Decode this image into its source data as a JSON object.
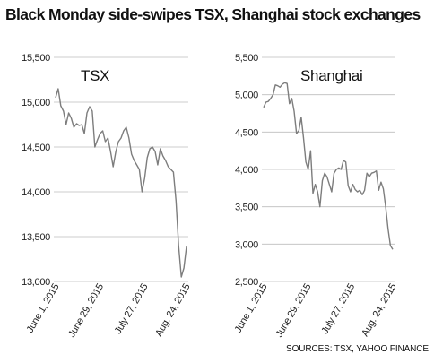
{
  "title": "Black Monday side-swipes TSX, Shanghai stock exchanges",
  "source": "SOURCES: TSX, YAHOO FINANCE",
  "colors": {
    "line": "#7d7d7d",
    "grid": "#bdbdbd",
    "text": "#222222"
  },
  "chart_data": [
    {
      "type": "line",
      "title": "TSX",
      "ylim": [
        13000,
        15500
      ],
      "yticks": [
        13000,
        13500,
        14000,
        14500,
        15000,
        15500
      ],
      "ytick_labels": [
        "13,000",
        "13,500",
        "14,000",
        "14,500",
        "15,000",
        "15,500"
      ],
      "xticks": [
        0,
        20,
        40,
        59
      ],
      "xtick_labels": [
        "June 1, 2015",
        "June 29, 2015",
        "July 27, 2015",
        "Aug. 24, 2015"
      ],
      "grid": true,
      "series": [
        {
          "values": [
            15050,
            15150,
            14960,
            14900,
            14750,
            14880,
            14820,
            14720,
            14760,
            14740,
            14750,
            14650,
            14880,
            14950,
            14900,
            14500,
            14580,
            14650,
            14680,
            14560,
            14600,
            14450,
            14280,
            14450,
            14560,
            14600,
            14680,
            14720,
            14600,
            14420,
            14350,
            14300,
            14250,
            14000,
            14150,
            14380,
            14480,
            14500,
            14450,
            14300,
            14480,
            14400,
            14350,
            14280,
            14250,
            14220,
            13900,
            13400,
            13050,
            13150,
            13390
          ]
        }
      ]
    },
    {
      "type": "line",
      "title": "Shanghai",
      "ylim": [
        2500,
        5500
      ],
      "yticks": [
        2500,
        3000,
        3500,
        4000,
        4500,
        5000,
        5500
      ],
      "ytick_labels": [
        "2,500",
        "3,000",
        "3,500",
        "4,000",
        "4,500",
        "5,000",
        "5,500"
      ],
      "xticks": [
        0,
        20,
        40,
        59
      ],
      "xtick_labels": [
        "June 1, 2015",
        "June 29, 2015",
        "July 27, 2015",
        "Aug. 24, 2015"
      ],
      "grid": true,
      "series": [
        {
          "values": [
            4830,
            4900,
            4910,
            4950,
            5000,
            5130,
            5120,
            5100,
            5140,
            5160,
            5150,
            4880,
            4950,
            4780,
            4480,
            4520,
            4700,
            4420,
            4100,
            4000,
            4250,
            3680,
            3800,
            3700,
            3500,
            3850,
            3950,
            3900,
            3800,
            3700,
            3950,
            4000,
            4020,
            4000,
            4120,
            4100,
            3780,
            3700,
            3800,
            3730,
            3700,
            3720,
            3660,
            3720,
            3950,
            3900,
            3950,
            3960,
            3980,
            3720,
            3830,
            3740,
            3500,
            3200,
            2980,
            2930
          ]
        }
      ]
    }
  ]
}
